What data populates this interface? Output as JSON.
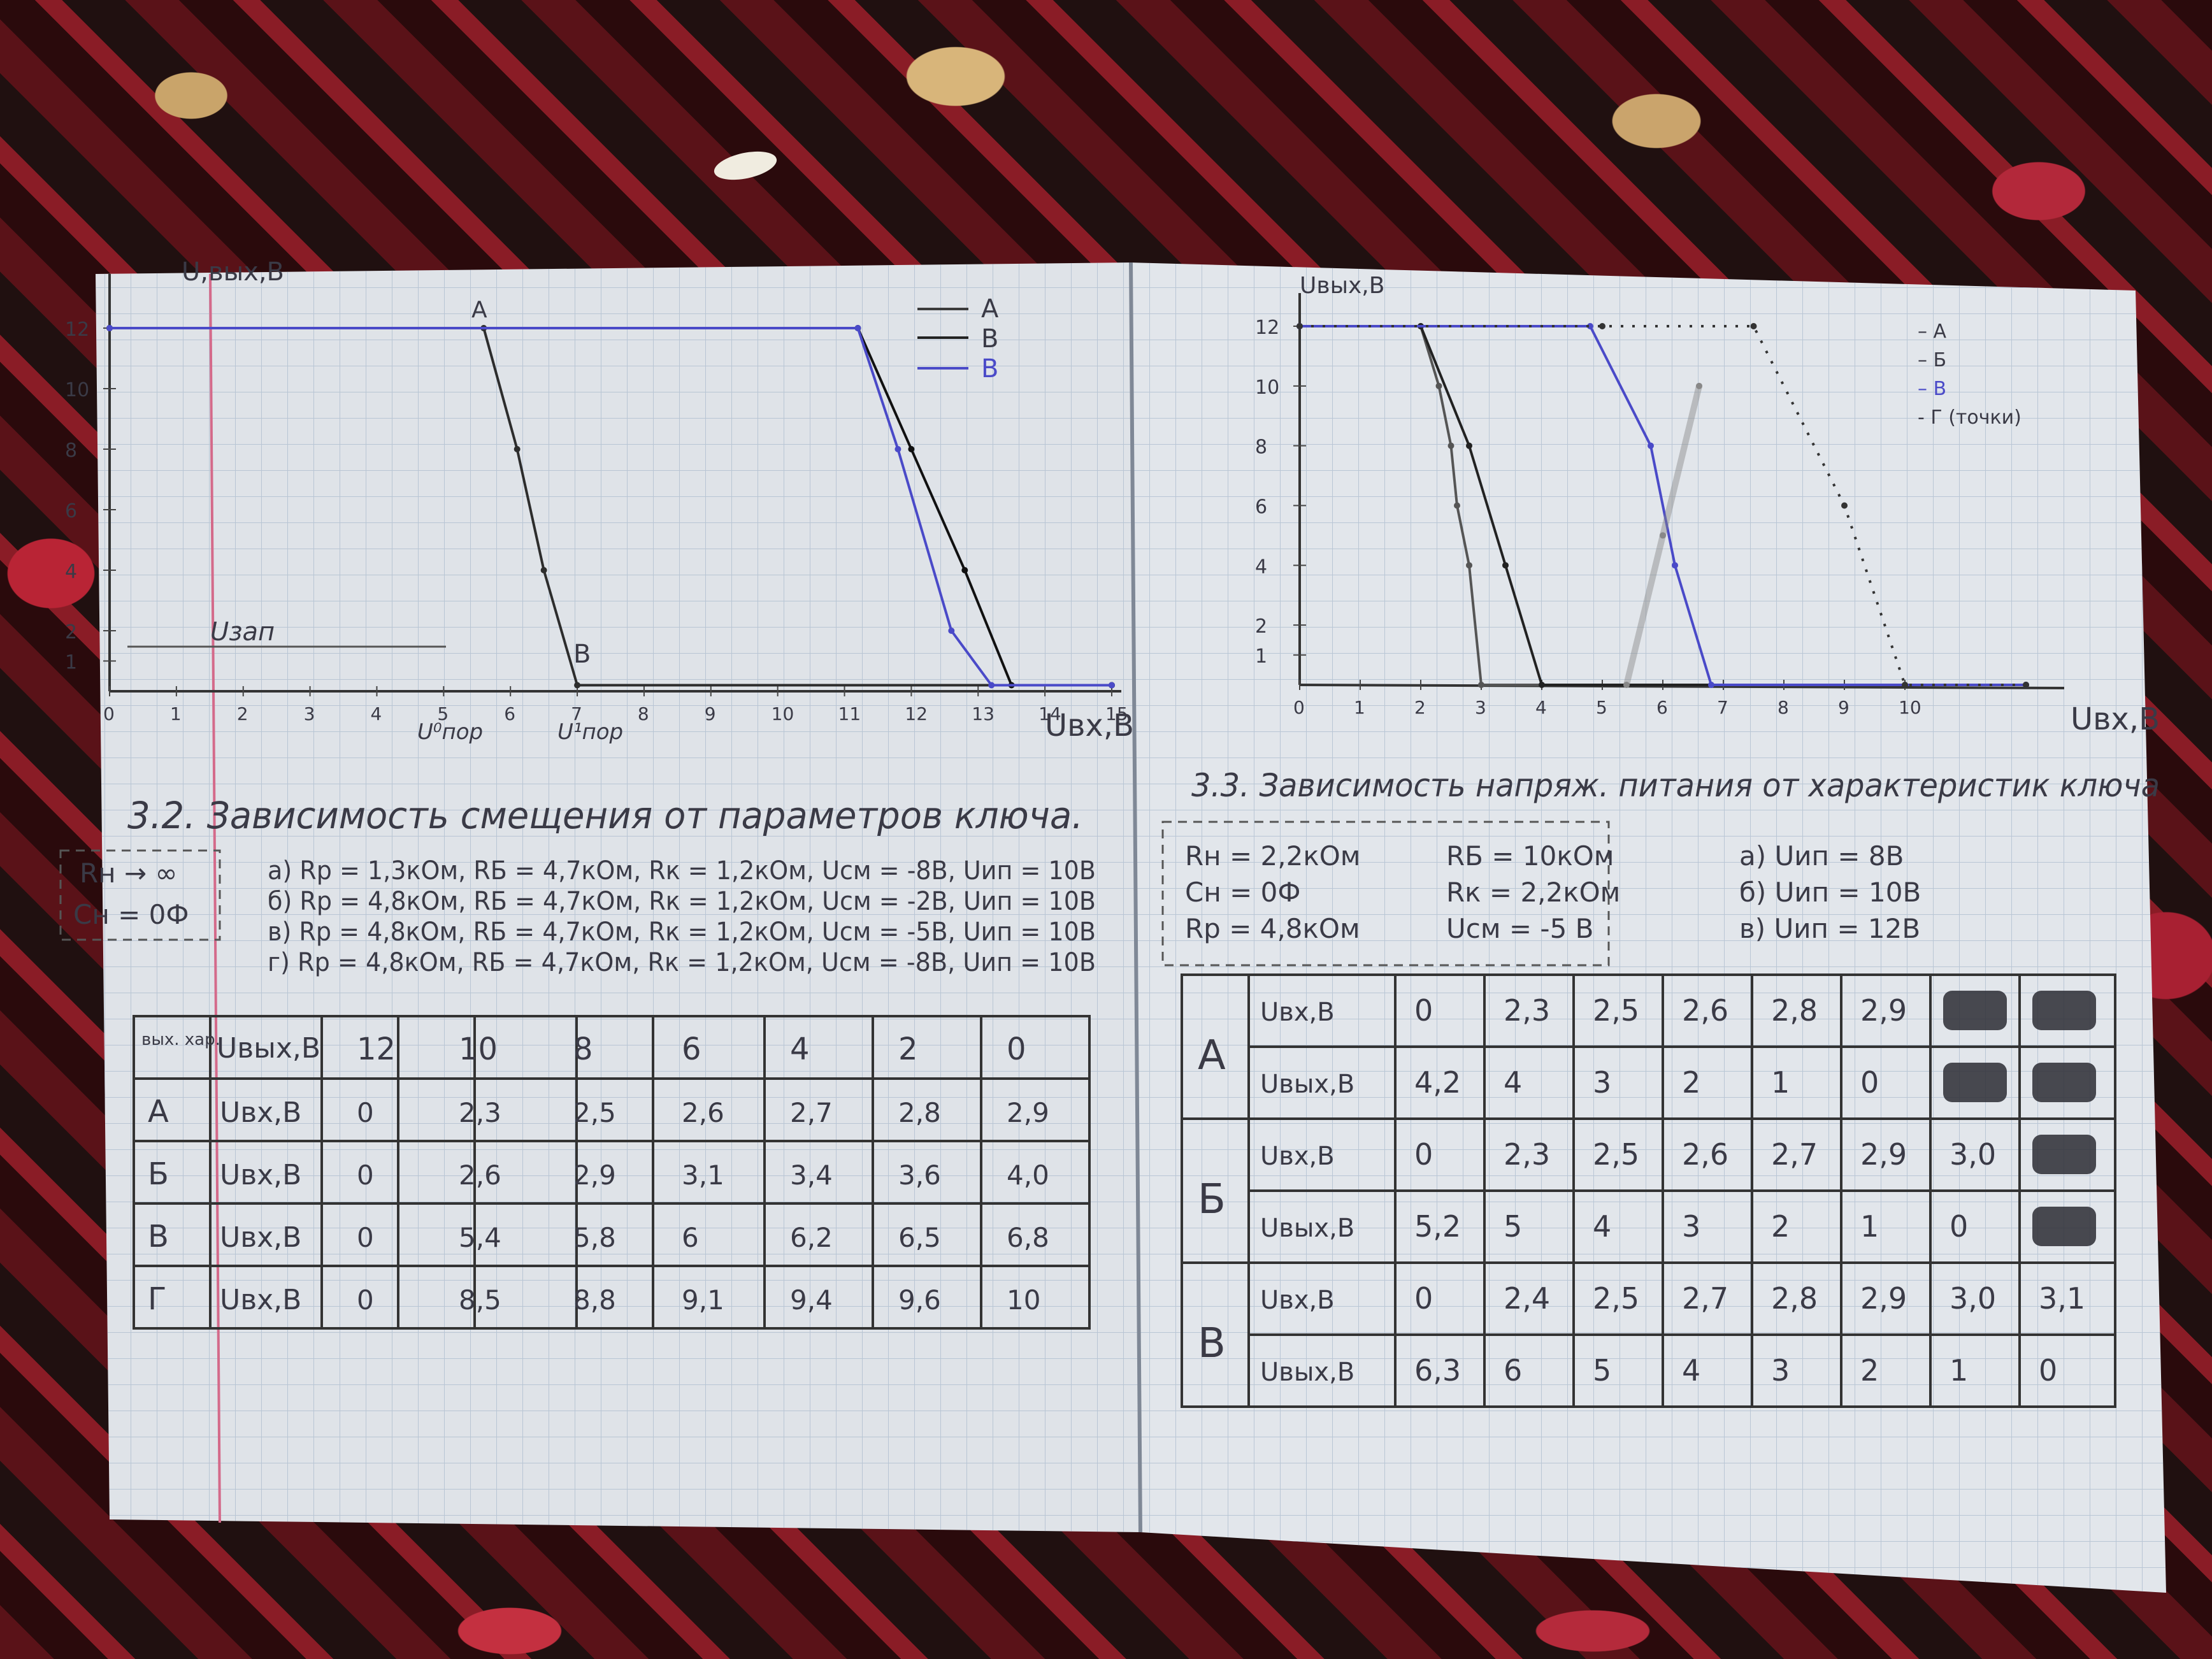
{
  "left_chart": {
    "ylabel": "U,вых,В",
    "xlabel": "Uвх,В",
    "yticks": [
      "12",
      "10",
      "8",
      "6",
      "4",
      "2",
      "1"
    ],
    "xticks": [
      "0",
      "1",
      "2",
      "3",
      "4",
      "5",
      "6",
      "7",
      "8",
      "9",
      "10",
      "11",
      "12",
      "13",
      "14",
      "15"
    ],
    "annot_a": "A",
    "annot_b": "B",
    "annot_uzap": "Uзап",
    "annot_upor0": "U⁰пор",
    "annot_upor1": "U¹пор",
    "legend": [
      "А",
      "В",
      "В"
    ],
    "chart_data": {
      "type": "line",
      "xlim": [
        0,
        15
      ],
      "ylim": [
        0,
        12
      ],
      "series": [
        {
          "name": "А",
          "x": [
            0,
            5.6,
            6.1,
            6.5,
            7.0,
            15
          ],
          "y": [
            12,
            12,
            8,
            4,
            0.2,
            0.2
          ]
        },
        {
          "name": "В",
          "x": [
            0,
            11.2,
            12.0,
            12.8,
            13.5,
            15
          ],
          "y": [
            12,
            12,
            8,
            4,
            0.2,
            0.2
          ]
        },
        {
          "name": "В",
          "x": [
            0,
            11.2,
            11.8,
            12.6,
            13.2,
            15
          ],
          "y": [
            12,
            12,
            8,
            2,
            0.2,
            0.2
          ]
        }
      ]
    }
  },
  "right_chart": {
    "ylabel": "Uвых,В",
    "xlabel": "Uвх,В",
    "yticks": [
      "12",
      "10",
      "8",
      "6",
      "4",
      "2",
      "1"
    ],
    "xticks": [
      "0",
      "1",
      "2",
      "3",
      "4",
      "5",
      "6",
      "7",
      "8",
      "9",
      "10"
    ],
    "legend": [
      "– А",
      "– Б",
      "– В",
      "- Г (точки)"
    ],
    "chart_data": {
      "type": "line",
      "xlim": [
        0,
        12
      ],
      "ylim": [
        0,
        12
      ],
      "series": [
        {
          "name": "А",
          "x": [
            0,
            2.0,
            2.3,
            2.5,
            2.6,
            2.8,
            3.0,
            12
          ],
          "y": [
            12,
            12,
            10,
            8,
            6,
            4,
            0,
            0
          ]
        },
        {
          "name": "Б",
          "x": [
            0,
            2.0,
            2.8,
            3.4,
            4.0,
            12
          ],
          "y": [
            12,
            12,
            8,
            4,
            0,
            0
          ]
        },
        {
          "name": "В",
          "x": [
            0,
            4.8,
            5.8,
            6.2,
            6.8,
            12
          ],
          "y": [
            12,
            12,
            8,
            4,
            0,
            0
          ]
        },
        {
          "name": "Г (точки)",
          "x": [
            0,
            5.0,
            7.5,
            9.0,
            10.0,
            12
          ],
          "y": [
            12,
            12,
            12,
            6,
            0,
            0
          ]
        },
        {
          "name": "",
          "x": [
            5.4,
            6.0,
            6.6
          ],
          "y": [
            0,
            5,
            10
          ]
        }
      ]
    }
  },
  "section32": {
    "title": "3.2. Зависимость смещения от параметров ключа.",
    "box": [
      "Rн → ∞",
      "Сн = 0Ф"
    ],
    "conditions": [
      "а) Rр = 1,3кОм, RБ = 4,7кОм, Rк = 1,2кОм, Uсм = -8В, Uип = 10В",
      "б) Rр = 4,8кОм, RБ = 4,7кОм, Rк = 1,2кОм, Uсм = -2В, Uип = 10В",
      "в) Rр = 4,8кОм, RБ = 4,7кОм, Rк = 1,2кОм, Uсм = -5В, Uип = 10В",
      "г) Rр = 4,8кОм, RБ = 4,7кОм, Rк = 1,2кОм, Uсм = -8В, Uип = 10В"
    ],
    "table": {
      "corner": "вых. хар.",
      "header_label": "Uвых,В",
      "header_values": [
        "12",
        "10",
        "8",
        "6",
        "4",
        "2",
        "0"
      ],
      "rows": [
        {
          "name": "А",
          "label": "Uвх,В",
          "values": [
            "0",
            "2,3",
            "2,5",
            "2,6",
            "2,7",
            "2,8",
            "2,9"
          ]
        },
        {
          "name": "Б",
          "label": "Uвх,В",
          "values": [
            "0",
            "2,6",
            "2,9",
            "3,1",
            "3,4",
            "3,6",
            "4,0"
          ]
        },
        {
          "name": "В",
          "label": "Uвх,В",
          "values": [
            "0",
            "5,4",
            "5,8",
            "6",
            "6,2",
            "6,5",
            "6,8"
          ]
        },
        {
          "name": "Г",
          "label": "Uвх,В",
          "values": [
            "0",
            "8,5",
            "8,8",
            "9,1",
            "9,4",
            "9,6",
            "10"
          ]
        }
      ]
    }
  },
  "section33": {
    "title": "3.3. Зависимость напряж. питания от характеристик ключа",
    "params_left": [
      "Rн = 2,2кОм",
      "Сн = 0Ф",
      "Rр = 4,8кОм"
    ],
    "params_mid": [
      "RБ = 10кОм",
      "Rк = 2,2кОм",
      "Uсм = -5 В"
    ],
    "params_right": [
      "а) Uип = 8В",
      "б) Uип = 10В",
      "в) Uип = 12В"
    ],
    "table": {
      "groups": [
        {
          "name": "А",
          "rows": [
            {
              "label": "Uвх,В",
              "values": [
                "0",
                "2,3",
                "2,5",
                "2,6",
                "2,8",
                "2,9",
                "",
                ""
              ]
            },
            {
              "label": "Uвых,В",
              "values": [
                "4,2",
                "4",
                "3",
                "2",
                "1",
                "0",
                "",
                ""
              ]
            }
          ]
        },
        {
          "name": "Б",
          "rows": [
            {
              "label": "Uвх,В",
              "values": [
                "0",
                "2,3",
                "2,5",
                "2,6",
                "2,7",
                "2,9",
                "3,0",
                ""
              ]
            },
            {
              "label": "Uвых,В",
              "values": [
                "5,2",
                "5",
                "4",
                "3",
                "2",
                "1",
                "0",
                ""
              ]
            }
          ]
        },
        {
          "name": "В",
          "rows": [
            {
              "label": "Uвх,В",
              "values": [
                "0",
                "2,4",
                "2,5",
                "2,7",
                "2,8",
                "2,9",
                "3,0",
                "3,1"
              ]
            },
            {
              "label": "Uвых,В",
              "values": [
                "6,3",
                "6",
                "5",
                "4",
                "3",
                "2",
                "1",
                "0"
              ]
            }
          ]
        }
      ]
    }
  }
}
